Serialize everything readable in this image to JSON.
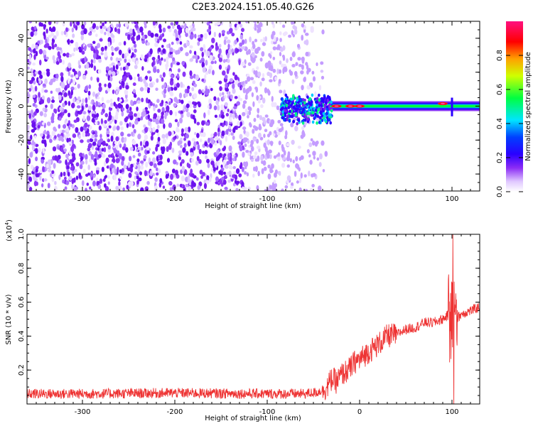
{
  "title": "C2E3.2024.151.05.40.G26",
  "chart_data": [
    {
      "type": "heatmap",
      "xlabel": "Height of straight line (km)",
      "ylabel": "Frequency (Hz)",
      "xlim": [
        -360,
        130
      ],
      "ylim": [
        -50,
        50
      ],
      "xticks": [
        -300,
        -200,
        -100,
        0,
        100
      ],
      "yticks": [
        -40,
        -20,
        0,
        20,
        40
      ],
      "colorbar": {
        "label": "Normalized spectral amplitude",
        "range": [
          0,
          1
        ],
        "ticks": [
          "0.0",
          "0.2",
          "0.4",
          "0.6",
          "0.8"
        ],
        "tick_values": [
          0.0,
          0.2,
          0.4,
          0.6,
          0.8
        ],
        "colormap": [
          "#ffffff",
          "#e8d8ff",
          "#8b2cf5",
          "#3a00ff",
          "#0000ff",
          "#00e5ff",
          "#00ff40",
          "#fff000",
          "#ff8000",
          "#ff0000",
          "#ff1080"
        ]
      },
      "regions": [
        {
          "name": "noise",
          "x_range": [
            -360,
            -35
          ],
          "y_range": [
            -50,
            50
          ],
          "amplitude": 0.02
        },
        {
          "name": "signal_band",
          "x_range": [
            -85,
            130
          ],
          "center_frequency": 0,
          "amplitude_peak": 1.0
        }
      ],
      "signal_peaks": [
        {
          "x": -25,
          "y": 0
        },
        {
          "x": -10,
          "y": 0
        },
        {
          "x": 0,
          "y": 0
        },
        {
          "x": 90,
          "y": 1.5
        }
      ]
    },
    {
      "type": "line",
      "xlabel": "Height of straight line (km)",
      "ylabel": "SNR (10 * v/v)",
      "multiplier_label": "(x10",
      "multiplier_exp": "4",
      "multiplier_close": ")",
      "xlim": [
        -360,
        130
      ],
      "ylim": [
        0,
        1.0
      ],
      "xticks": [
        -300,
        -200,
        -100,
        0,
        100
      ],
      "yticks": [
        "0.2",
        "0.4",
        "0.6",
        "0.8",
        "1.0"
      ],
      "ytick_values": [
        0.2,
        0.4,
        0.6,
        0.8,
        1.0
      ],
      "series": [
        {
          "color": "#ee3333",
          "x": [
            -360,
            -300,
            -200,
            -100,
            -60,
            -45,
            -35,
            -30,
            -25,
            -20,
            -15,
            -10,
            -5,
            0,
            10,
            20,
            30,
            40,
            50,
            60,
            70,
            80,
            90,
            95,
            100,
            105,
            110,
            120,
            130
          ],
          "values": [
            0.06,
            0.06,
            0.065,
            0.06,
            0.06,
            0.07,
            0.1,
            0.15,
            0.13,
            0.17,
            0.19,
            0.21,
            0.25,
            0.26,
            0.31,
            0.35,
            0.4,
            0.41,
            0.44,
            0.45,
            0.48,
            0.48,
            0.5,
            0.52,
            0.5,
            0.5,
            0.53,
            0.55,
            0.57
          ],
          "noise_amplitude": 0.03
        }
      ],
      "spikes": [
        {
          "x": 101,
          "value": 1.0
        },
        {
          "x": 102,
          "value": 0.0
        }
      ]
    }
  ]
}
